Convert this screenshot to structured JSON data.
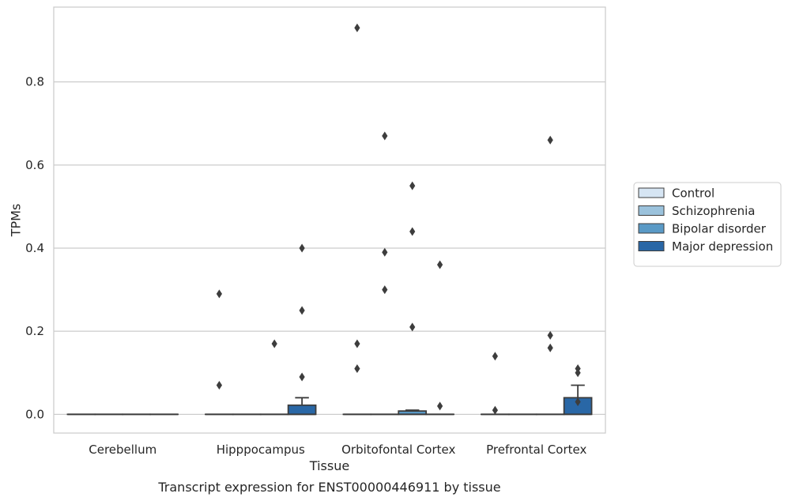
{
  "chart_data": {
    "type": "box",
    "title": "",
    "caption": "Transcript expression for ENST00000446911 by tissue",
    "xlabel": "Tissue",
    "ylabel": "TPMs",
    "ylim": [
      -0.045,
      0.98
    ],
    "yticks": [
      0.0,
      0.2,
      0.4,
      0.6,
      0.8
    ],
    "ytick_labels": [
      "0.0",
      "0.2",
      "0.4",
      "0.6",
      "0.8"
    ],
    "grid": "horizontal",
    "legend_position": "right",
    "categories": [
      "Cerebellum",
      "Hipppocampus",
      "Orbitofontal Cortex",
      "Prefrontal Cortex"
    ],
    "series": [
      {
        "name": "Control",
        "color": "#d6e5f3",
        "boxes": [
          {
            "q1": 0,
            "median": 0,
            "q3": 0,
            "whisker_low": 0,
            "whisker_high": 0,
            "outliers": []
          },
          {
            "q1": 0,
            "median": 0,
            "q3": 0,
            "whisker_low": 0,
            "whisker_high": 0,
            "outliers": [
              0.29,
              0.07
            ]
          },
          {
            "q1": 0,
            "median": 0,
            "q3": 0,
            "whisker_low": 0,
            "whisker_high": 0,
            "outliers": [
              0.93,
              0.17,
              0.11
            ]
          },
          {
            "q1": 0,
            "median": 0,
            "q3": 0,
            "whisker_low": 0,
            "whisker_high": 0,
            "outliers": [
              0.14,
              0.01
            ]
          }
        ]
      },
      {
        "name": "Schizophrenia",
        "color": "#9bc2dc",
        "boxes": [
          {
            "q1": 0,
            "median": 0,
            "q3": 0,
            "whisker_low": 0,
            "whisker_high": 0,
            "outliers": []
          },
          {
            "q1": 0,
            "median": 0,
            "q3": 0,
            "whisker_low": 0,
            "whisker_high": 0,
            "outliers": []
          },
          {
            "q1": 0,
            "median": 0,
            "q3": 0,
            "whisker_low": 0,
            "whisker_high": 0,
            "outliers": [
              0.67,
              0.39,
              0.3
            ]
          },
          {
            "q1": 0,
            "median": 0,
            "q3": 0,
            "whisker_low": 0,
            "whisker_high": 0,
            "outliers": []
          }
        ]
      },
      {
        "name": "Bipolar disorder",
        "color": "#5a9ac6",
        "boxes": [
          {
            "q1": 0,
            "median": 0,
            "q3": 0,
            "whisker_low": 0,
            "whisker_high": 0,
            "outliers": []
          },
          {
            "q1": 0,
            "median": 0,
            "q3": 0,
            "whisker_low": 0,
            "whisker_high": 0,
            "outliers": [
              0.17
            ]
          },
          {
            "q1": 0,
            "median": 0,
            "q3": 0.008,
            "whisker_low": 0,
            "whisker_high": 0.01,
            "outliers": [
              0.55,
              0.44,
              0.21
            ]
          },
          {
            "q1": 0,
            "median": 0,
            "q3": 0,
            "whisker_low": 0,
            "whisker_high": 0,
            "outliers": [
              0.66,
              0.19,
              0.16
            ]
          }
        ]
      },
      {
        "name": "Major depression",
        "color": "#2967a6",
        "boxes": [
          {
            "q1": 0,
            "median": 0,
            "q3": 0,
            "whisker_low": 0,
            "whisker_high": 0,
            "outliers": []
          },
          {
            "q1": 0,
            "median": 0,
            "q3": 0.022,
            "whisker_low": 0,
            "whisker_high": 0.04,
            "outliers": [
              0.4,
              0.25,
              0.09
            ]
          },
          {
            "q1": 0,
            "median": 0,
            "q3": 0,
            "whisker_low": 0,
            "whisker_high": 0,
            "outliers": [
              0.36,
              0.02
            ]
          },
          {
            "q1": 0,
            "median": 0,
            "q3": 0.04,
            "whisker_low": 0,
            "whisker_high": 0.07,
            "outliers": [
              0.11,
              0.1,
              0.03
            ]
          }
        ]
      }
    ]
  }
}
